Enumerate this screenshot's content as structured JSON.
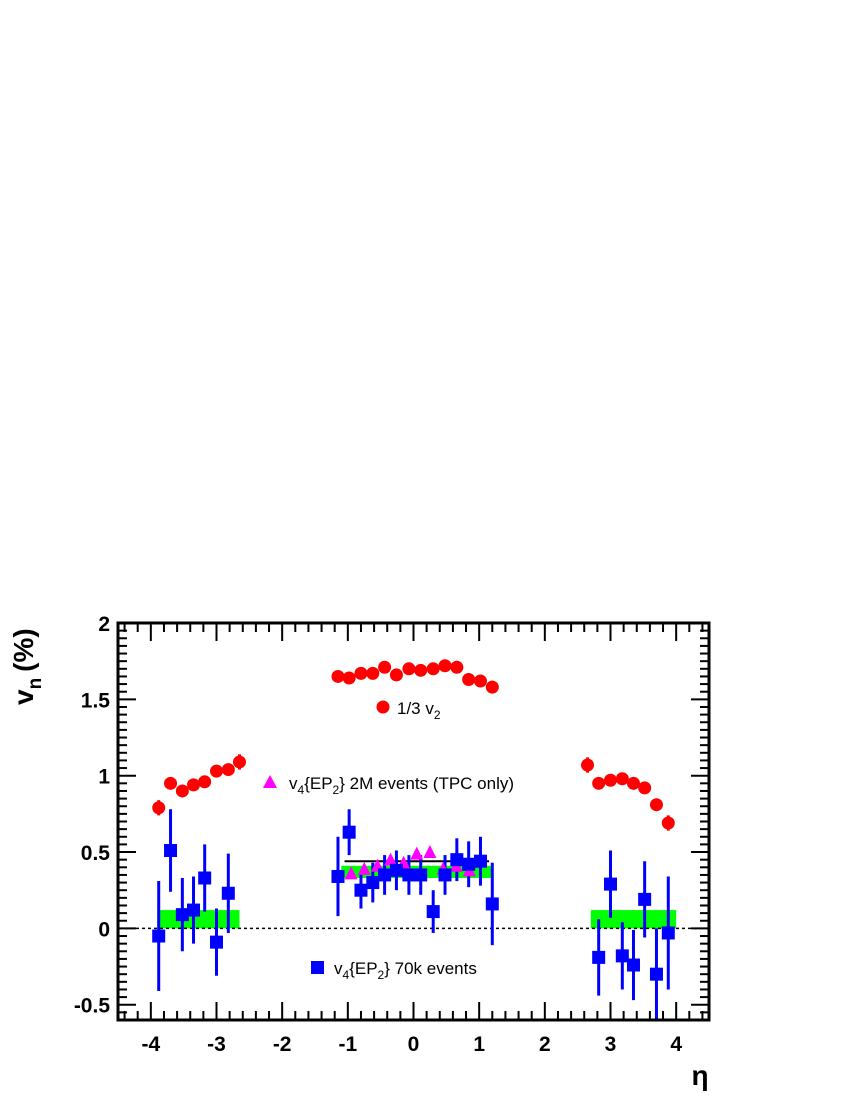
{
  "chart_data": {
    "type": "scatter",
    "title": "",
    "xlabel": "η",
    "ylabel": "v",
    "ylabel_sub": "n",
    "ylabel_unit": "(%)",
    "xlim": [
      -4.5,
      4.5
    ],
    "ylim": [
      -0.6,
      2.0
    ],
    "x_ticks": [
      -4,
      -3,
      -2,
      -1,
      0,
      1,
      2,
      3,
      4
    ],
    "y_ticks": [
      -0.5,
      0,
      0.5,
      1,
      1.5,
      2
    ],
    "y_tick_labels": [
      "-0.5",
      "0",
      "0.5",
      "1",
      "1.5",
      "2"
    ],
    "grid": false,
    "reference_line_y": 0,
    "series": [
      {
        "name": "1/3 v",
        "name_sub": "2",
        "marker": "circle",
        "color": "#ff0000",
        "points": [
          {
            "x": -3.88,
            "y": 0.79,
            "err": 0.05
          },
          {
            "x": -3.7,
            "y": 0.95,
            "err": 0.03
          },
          {
            "x": -3.52,
            "y": 0.9,
            "err": 0.03
          },
          {
            "x": -3.35,
            "y": 0.94,
            "err": 0.03
          },
          {
            "x": -3.18,
            "y": 0.96,
            "err": 0.03
          },
          {
            "x": -3.0,
            "y": 1.03,
            "err": 0.03
          },
          {
            "x": -2.82,
            "y": 1.04,
            "err": 0.03
          },
          {
            "x": -2.65,
            "y": 1.09,
            "err": 0.05
          },
          {
            "x": -1.15,
            "y": 1.65,
            "err": 0.02
          },
          {
            "x": -0.98,
            "y": 1.64,
            "err": 0.02
          },
          {
            "x": -0.8,
            "y": 1.67,
            "err": 0.02
          },
          {
            "x": -0.62,
            "y": 1.67,
            "err": 0.02
          },
          {
            "x": -0.44,
            "y": 1.71,
            "err": 0.02
          },
          {
            "x": -0.26,
            "y": 1.66,
            "err": 0.02
          },
          {
            "x": -0.07,
            "y": 1.7,
            "err": 0.02
          },
          {
            "x": 0.11,
            "y": 1.69,
            "err": 0.02
          },
          {
            "x": 0.3,
            "y": 1.7,
            "err": 0.02
          },
          {
            "x": 0.48,
            "y": 1.72,
            "err": 0.02
          },
          {
            "x": 0.66,
            "y": 1.71,
            "err": 0.02
          },
          {
            "x": 0.84,
            "y": 1.63,
            "err": 0.02
          },
          {
            "x": 1.02,
            "y": 1.62,
            "err": 0.02
          },
          {
            "x": 1.2,
            "y": 1.58,
            "err": 0.02
          },
          {
            "x": 2.65,
            "y": 1.07,
            "err": 0.05
          },
          {
            "x": 2.82,
            "y": 0.95,
            "err": 0.03
          },
          {
            "x": 3.0,
            "y": 0.97,
            "err": 0.03
          },
          {
            "x": 3.18,
            "y": 0.98,
            "err": 0.03
          },
          {
            "x": 3.35,
            "y": 0.95,
            "err": 0.03
          },
          {
            "x": 3.52,
            "y": 0.92,
            "err": 0.03
          },
          {
            "x": 3.7,
            "y": 0.81,
            "err": 0.04
          },
          {
            "x": 3.88,
            "y": 0.69,
            "err": 0.05
          }
        ]
      },
      {
        "name": "v",
        "name_sub": "4",
        "name_rest": "{EP",
        "name_rest_sub": "2",
        "name_tail": "} 2M events (TPC only)",
        "marker": "triangle",
        "color": "#ff00ff",
        "points": [
          {
            "x": -0.95,
            "y": 0.36,
            "err": 0.02
          },
          {
            "x": -0.75,
            "y": 0.39,
            "err": 0.02
          },
          {
            "x": -0.55,
            "y": 0.41,
            "err": 0.02
          },
          {
            "x": -0.35,
            "y": 0.45,
            "err": 0.02
          },
          {
            "x": -0.15,
            "y": 0.43,
            "err": 0.02
          },
          {
            "x": 0.05,
            "y": 0.49,
            "err": 0.02
          },
          {
            "x": 0.25,
            "y": 0.5,
            "err": 0.02
          },
          {
            "x": 0.45,
            "y": 0.39,
            "err": 0.02
          },
          {
            "x": 0.65,
            "y": 0.41,
            "err": 0.02
          },
          {
            "x": 0.85,
            "y": 0.38,
            "err": 0.02
          }
        ]
      },
      {
        "name": "v",
        "name_sub": "4",
        "name_rest": "{EP",
        "name_rest_sub": "2",
        "name_tail": "} 70k events",
        "marker": "square",
        "color": "#0000ff",
        "points": [
          {
            "x": -3.88,
            "y": -0.05,
            "err": 0.36
          },
          {
            "x": -3.7,
            "y": 0.51,
            "err": 0.27
          },
          {
            "x": -3.52,
            "y": 0.09,
            "err": 0.24
          },
          {
            "x": -3.35,
            "y": 0.12,
            "err": 0.22
          },
          {
            "x": -3.18,
            "y": 0.33,
            "err": 0.22
          },
          {
            "x": -3.0,
            "y": -0.09,
            "err": 0.22
          },
          {
            "x": -2.82,
            "y": 0.23,
            "err": 0.26
          },
          {
            "x": -1.15,
            "y": 0.34,
            "err": 0.26
          },
          {
            "x": -0.98,
            "y": 0.63,
            "err": 0.15
          },
          {
            "x": -0.8,
            "y": 0.25,
            "err": 0.12
          },
          {
            "x": -0.62,
            "y": 0.3,
            "err": 0.13
          },
          {
            "x": -0.44,
            "y": 0.35,
            "err": 0.13
          },
          {
            "x": -0.26,
            "y": 0.38,
            "err": 0.13
          },
          {
            "x": -0.07,
            "y": 0.35,
            "err": 0.13
          },
          {
            "x": 0.11,
            "y": 0.35,
            "err": 0.13
          },
          {
            "x": 0.3,
            "y": 0.11,
            "err": 0.14
          },
          {
            "x": 0.48,
            "y": 0.35,
            "err": 0.13
          },
          {
            "x": 0.66,
            "y": 0.45,
            "err": 0.14
          },
          {
            "x": 0.84,
            "y": 0.42,
            "err": 0.15
          },
          {
            "x": 1.02,
            "y": 0.44,
            "err": 0.16
          },
          {
            "x": 1.2,
            "y": 0.16,
            "err": 0.27
          },
          {
            "x": 2.82,
            "y": -0.19,
            "err": 0.25
          },
          {
            "x": 3.0,
            "y": 0.29,
            "err": 0.22
          },
          {
            "x": 3.18,
            "y": -0.18,
            "err": 0.22
          },
          {
            "x": 3.35,
            "y": -0.24,
            "err": 0.23
          },
          {
            "x": 3.52,
            "y": 0.19,
            "err": 0.25
          },
          {
            "x": 3.7,
            "y": -0.3,
            "err": 0.3
          },
          {
            "x": 3.88,
            "y": -0.03,
            "err": 0.37
          }
        ]
      }
    ],
    "bands": [
      {
        "x0": -3.9,
        "x1": -2.65,
        "y0": 0.0,
        "y1": 0.12,
        "color": "#00ff00"
      },
      {
        "x0": -1.1,
        "x1": 1.2,
        "y0": 0.33,
        "y1": 0.41,
        "color": "#00ff00"
      },
      {
        "x0": 2.7,
        "x1": 4.0,
        "y0": 0.0,
        "y1": 0.12,
        "color": "#00ff00"
      }
    ],
    "mean_line": {
      "x0": -1.05,
      "x1": 1.15,
      "y": 0.44,
      "color": "#000000"
    },
    "legend_placement": "inside, stacked labels near series"
  }
}
